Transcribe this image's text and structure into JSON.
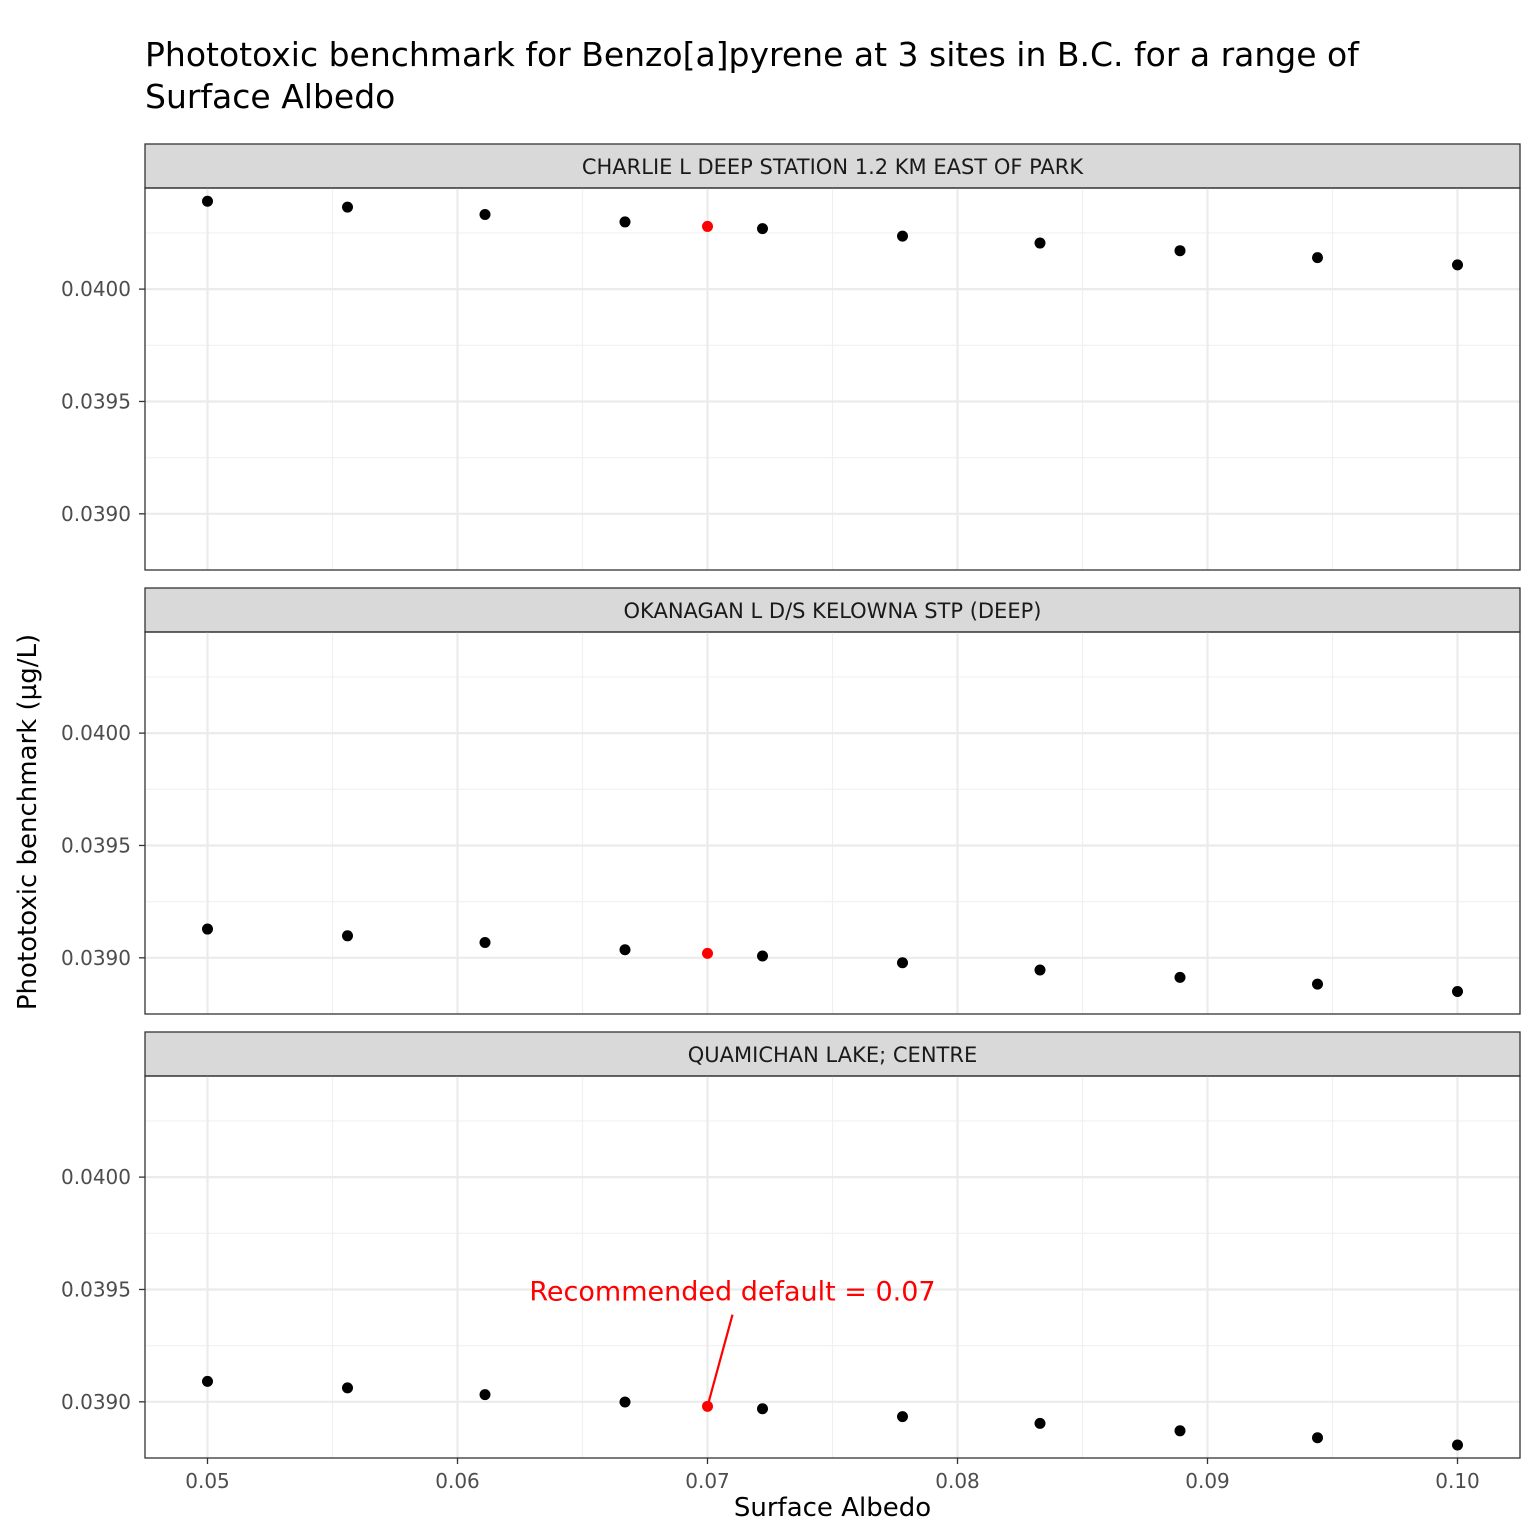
{
  "chart_data": {
    "type": "scatter",
    "title": "Phototoxic benchmark for Benzo[a]pyrene at 3 sites in B.C. for a range of Surface Albedo",
    "title_lines": [
      "Phototoxic benchmark for Benzo[a]pyrene at 3 sites in B.C. for a range of",
      "Surface Albedo"
    ],
    "xlabel": "Surface Albedo",
    "ylabel": "Phototoxic benchmark (µg/L)",
    "xlim": [
      0.0475,
      0.1025
    ],
    "ylim": [
      0.03875,
      0.04045
    ],
    "x_ticks": [
      0.05,
      0.06,
      0.07,
      0.08,
      0.09,
      0.1
    ],
    "x_tick_labels": [
      "0.05",
      "0.06",
      "0.07",
      "0.08",
      "0.09",
      "0.10"
    ],
    "y_ticks": [
      0.039,
      0.0395,
      0.04
    ],
    "y_tick_labels": [
      "0.0390",
      "0.0395",
      "0.0400"
    ],
    "grid": true,
    "point_color": "#000000",
    "highlight_color": "#ff0000",
    "panels": [
      {
        "strip_label": "CHARLIE L DEEP STATION 1.2 KM EAST OF PARK",
        "x": [
          0.05,
          0.0556,
          0.0611,
          0.0667,
          0.0722,
          0.0778,
          0.0833,
          0.0889,
          0.0944,
          0.1
        ],
        "y": [
          0.040391,
          0.040365,
          0.040332,
          0.040299,
          0.040269,
          0.040236,
          0.040205,
          0.040171,
          0.04014,
          0.040108
        ],
        "highlight": {
          "x": 0.07,
          "y": 0.040279
        }
      },
      {
        "strip_label": "OKANAGAN L D/S KELOWNA STP (DEEP)",
        "x": [
          0.05,
          0.0556,
          0.0611,
          0.0667,
          0.0722,
          0.0778,
          0.0833,
          0.0889,
          0.0944,
          0.1
        ],
        "y": [
          0.039128,
          0.039098,
          0.039068,
          0.039036,
          0.039008,
          0.038978,
          0.038946,
          0.038913,
          0.038883,
          0.03885
        ],
        "highlight": {
          "x": 0.07,
          "y": 0.03902
        }
      },
      {
        "strip_label": "QUAMICHAN LAKE; CENTRE",
        "x": [
          0.05,
          0.0556,
          0.0611,
          0.0667,
          0.0722,
          0.0778,
          0.0833,
          0.0889,
          0.0944,
          0.1
        ],
        "y": [
          0.039091,
          0.039062,
          0.039032,
          0.038999,
          0.038969,
          0.038934,
          0.038904,
          0.038871,
          0.03884,
          0.038808
        ],
        "highlight": {
          "x": 0.07,
          "y": 0.03898
        }
      }
    ],
    "annotation": {
      "text": "Recommended default = 0.07",
      "panel": 2,
      "x": 0.07,
      "y": 0.03898,
      "text_x": 0.071,
      "text_y": 0.03945,
      "color": "#ff0000"
    }
  }
}
